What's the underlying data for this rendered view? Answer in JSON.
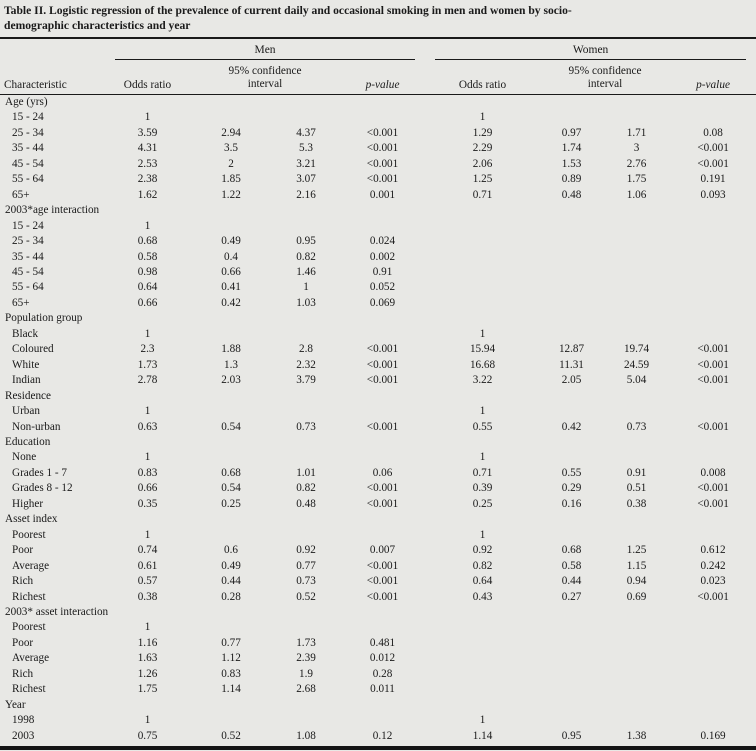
{
  "page": {
    "background": "#e8e8e5",
    "text_color": "#1a1a1a",
    "rule_color": "#1a1a1a"
  },
  "table": {
    "title_line1": "Table II. Logistic regression of the prevalence of current daily and occasional smoking in men and women by socio-",
    "title_line2": "demographic characteristics and year",
    "groups": [
      {
        "label": "Men"
      },
      {
        "label": "Women"
      }
    ],
    "columns": {
      "characteristic": "Characteristic",
      "odds_ratio": "Odds ratio",
      "confidence_interval": "95% confidence interval",
      "p_value": "p-value"
    },
    "sections": [
      {
        "name": "Age (yrs)",
        "rows": [
          {
            "label": "15 - 24",
            "men": [
              "1",
              "",
              "",
              ""
            ],
            "women": [
              "1",
              "",
              "",
              ""
            ]
          },
          {
            "label": "25 - 34",
            "men": [
              "3.59",
              "2.94",
              "4.37",
              "<0.001"
            ],
            "women": [
              "1.29",
              "0.97",
              "1.71",
              "0.08"
            ]
          },
          {
            "label": "35 - 44",
            "men": [
              "4.31",
              "3.5",
              "5.3",
              "<0.001"
            ],
            "women": [
              "2.29",
              "1.74",
              "3",
              "<0.001"
            ]
          },
          {
            "label": "45 - 54",
            "men": [
              "2.53",
              "2",
              "3.21",
              "<0.001"
            ],
            "women": [
              "2.06",
              "1.53",
              "2.76",
              "<0.001"
            ]
          },
          {
            "label": "55 - 64",
            "men": [
              "2.38",
              "1.85",
              "3.07",
              "<0.001"
            ],
            "women": [
              "1.25",
              "0.89",
              "1.75",
              "0.191"
            ]
          },
          {
            "label": "65+",
            "men": [
              "1.62",
              "1.22",
              "2.16",
              "0.001"
            ],
            "women": [
              "0.71",
              "0.48",
              "1.06",
              "0.093"
            ]
          }
        ]
      },
      {
        "name": "2003*age interaction",
        "rows": [
          {
            "label": "15 - 24",
            "men": [
              "1",
              "",
              "",
              ""
            ],
            "women": [
              "",
              "",
              "",
              ""
            ]
          },
          {
            "label": "25 - 34",
            "men": [
              "0.68",
              "0.49",
              "0.95",
              "0.024"
            ],
            "women": [
              "",
              "",
              "",
              ""
            ]
          },
          {
            "label": "35 - 44",
            "men": [
              "0.58",
              "0.4",
              "0.82",
              "0.002"
            ],
            "women": [
              "",
              "",
              "",
              ""
            ]
          },
          {
            "label": "45 - 54",
            "men": [
              "0.98",
              "0.66",
              "1.46",
              "0.91"
            ],
            "women": [
              "",
              "",
              "",
              ""
            ]
          },
          {
            "label": "55 - 64",
            "men": [
              "0.64",
              "0.41",
              "1",
              "0.052"
            ],
            "women": [
              "",
              "",
              "",
              ""
            ]
          },
          {
            "label": "65+",
            "men": [
              "0.66",
              "0.42",
              "1.03",
              "0.069"
            ],
            "women": [
              "",
              "",
              "",
              ""
            ]
          }
        ]
      },
      {
        "name": "Population group",
        "rows": [
          {
            "label": "Black",
            "men": [
              "1",
              "",
              "",
              ""
            ],
            "women": [
              "1",
              "",
              "",
              ""
            ]
          },
          {
            "label": "Coloured",
            "men": [
              "2.3",
              "1.88",
              "2.8",
              "<0.001"
            ],
            "women": [
              "15.94",
              "12.87",
              "19.74",
              "<0.001"
            ]
          },
          {
            "label": "White",
            "men": [
              "1.73",
              "1.3",
              "2.32",
              "<0.001"
            ],
            "women": [
              "16.68",
              "11.31",
              "24.59",
              "<0.001"
            ]
          },
          {
            "label": "Indian",
            "men": [
              "2.78",
              "2.03",
              "3.79",
              "<0.001"
            ],
            "women": [
              "3.22",
              "2.05",
              "5.04",
              "<0.001"
            ]
          }
        ]
      },
      {
        "name": "Residence",
        "rows": [
          {
            "label": "Urban",
            "men": [
              "1",
              "",
              "",
              ""
            ],
            "women": [
              "1",
              "",
              "",
              ""
            ]
          },
          {
            "label": "Non-urban",
            "men": [
              "0.63",
              "0.54",
              "0.73",
              "<0.001"
            ],
            "women": [
              "0.55",
              "0.42",
              "0.73",
              "<0.001"
            ]
          }
        ]
      },
      {
        "name": "Education",
        "rows": [
          {
            "label": "None",
            "men": [
              "1",
              "",
              "",
              ""
            ],
            "women": [
              "1",
              "",
              "",
              ""
            ]
          },
          {
            "label": "Grades 1 - 7",
            "men": [
              "0.83",
              "0.68",
              "1.01",
              "0.06"
            ],
            "women": [
              "0.71",
              "0.55",
              "0.91",
              "0.008"
            ]
          },
          {
            "label": "Grades 8 - 12",
            "men": [
              "0.66",
              "0.54",
              "0.82",
              "<0.001"
            ],
            "women": [
              "0.39",
              "0.29",
              "0.51",
              "<0.001"
            ]
          },
          {
            "label": "Higher",
            "men": [
              "0.35",
              "0.25",
              "0.48",
              "<0.001"
            ],
            "women": [
              "0.25",
              "0.16",
              "0.38",
              "<0.001"
            ]
          }
        ]
      },
      {
        "name": "Asset index",
        "rows": [
          {
            "label": "Poorest",
            "men": [
              "1",
              "",
              "",
              ""
            ],
            "women": [
              "1",
              "",
              "",
              ""
            ]
          },
          {
            "label": "Poor",
            "men": [
              "0.74",
              "0.6",
              "0.92",
              "0.007"
            ],
            "women": [
              "0.92",
              "0.68",
              "1.25",
              "0.612"
            ]
          },
          {
            "label": "Average",
            "men": [
              "0.61",
              "0.49",
              "0.77",
              "<0.001"
            ],
            "women": [
              "0.82",
              "0.58",
              "1.15",
              "0.242"
            ]
          },
          {
            "label": "Rich",
            "men": [
              "0.57",
              "0.44",
              "0.73",
              "<0.001"
            ],
            "women": [
              "0.64",
              "0.44",
              "0.94",
              "0.023"
            ]
          },
          {
            "label": "Richest",
            "men": [
              "0.38",
              "0.28",
              "0.52",
              "<0.001"
            ],
            "women": [
              "0.43",
              "0.27",
              "0.69",
              "<0.001"
            ]
          }
        ]
      },
      {
        "name": "2003* asset interaction",
        "rows": [
          {
            "label": "Poorest",
            "men": [
              "1",
              "",
              "",
              ""
            ],
            "women": [
              "",
              "",
              "",
              ""
            ]
          },
          {
            "label": "Poor",
            "men": [
              "1.16",
              "0.77",
              "1.73",
              "0.481"
            ],
            "women": [
              "",
              "",
              "",
              ""
            ]
          },
          {
            "label": "Average",
            "men": [
              "1.63",
              "1.12",
              "2.39",
              "0.012"
            ],
            "women": [
              "",
              "",
              "",
              ""
            ]
          },
          {
            "label": "Rich",
            "men": [
              "1.26",
              "0.83",
              "1.9",
              "0.28"
            ],
            "women": [
              "",
              "",
              "",
              ""
            ]
          },
          {
            "label": "Richest",
            "men": [
              "1.75",
              "1.14",
              "2.68",
              "0.011"
            ],
            "women": [
              "",
              "",
              "",
              ""
            ]
          }
        ]
      },
      {
        "name": "Year",
        "rows": [
          {
            "label": "1998",
            "men": [
              "1",
              "",
              "",
              ""
            ],
            "women": [
              "1",
              "",
              "",
              ""
            ]
          },
          {
            "label": "2003",
            "men": [
              "0.75",
              "0.52",
              "1.08",
              "0.12"
            ],
            "women": [
              "1.14",
              "0.95",
              "1.38",
              "0.169"
            ]
          }
        ]
      }
    ]
  }
}
